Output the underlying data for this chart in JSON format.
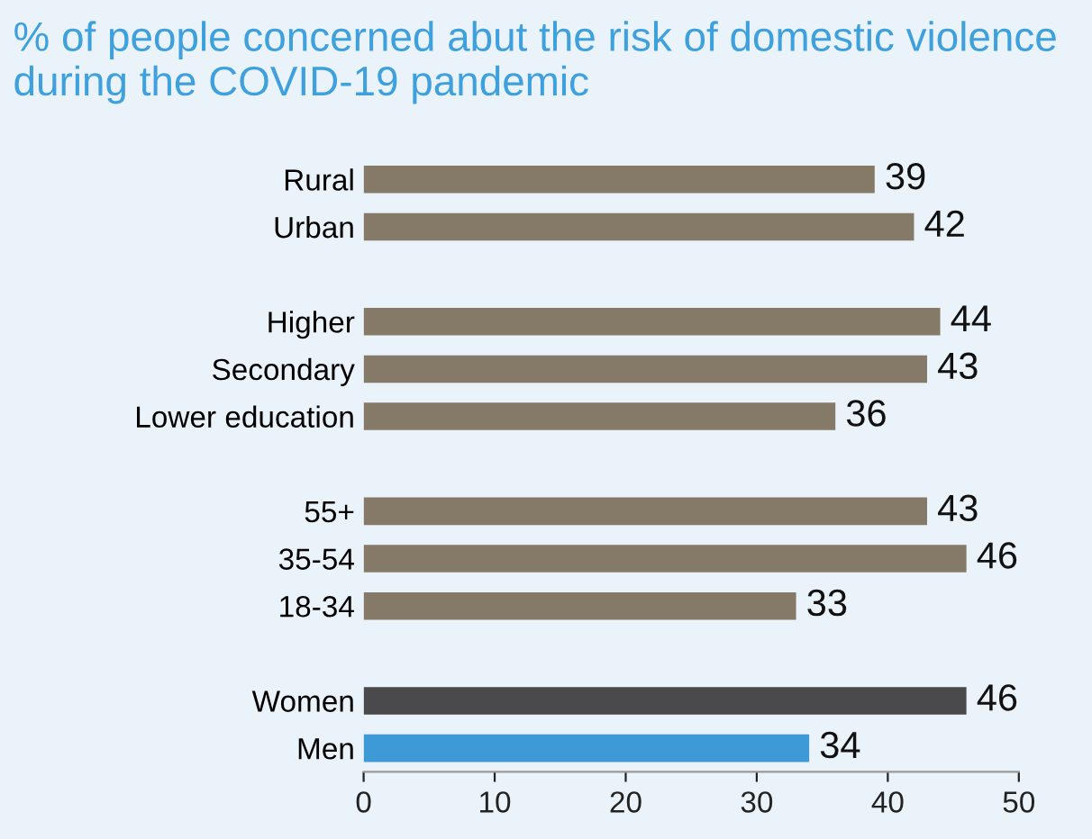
{
  "chart_data": {
    "type": "bar",
    "orientation": "horizontal",
    "title": "% of people concerned abut the risk of domestic violence during the COVID-19 pandemic",
    "categories": [
      "Rural",
      "Urban",
      null,
      "Higher",
      "Secondary",
      "Lower education",
      null,
      "55+",
      "35-54",
      "18-34",
      null,
      "Women",
      "Men"
    ],
    "values": [
      39,
      42,
      null,
      44,
      43,
      36,
      null,
      43,
      46,
      33,
      null,
      46,
      34
    ],
    "colors": [
      "#857a68",
      "#857a68",
      null,
      "#857a68",
      "#857a68",
      "#857a68",
      null,
      "#857a68",
      "#857a68",
      "#857a68",
      null,
      "#4a4a4c",
      "#3e9ad6"
    ],
    "xlim": [
      0,
      50
    ],
    "xticks": [
      0,
      10,
      20,
      30,
      40,
      50
    ],
    "data_labels": true,
    "grid": false
  }
}
